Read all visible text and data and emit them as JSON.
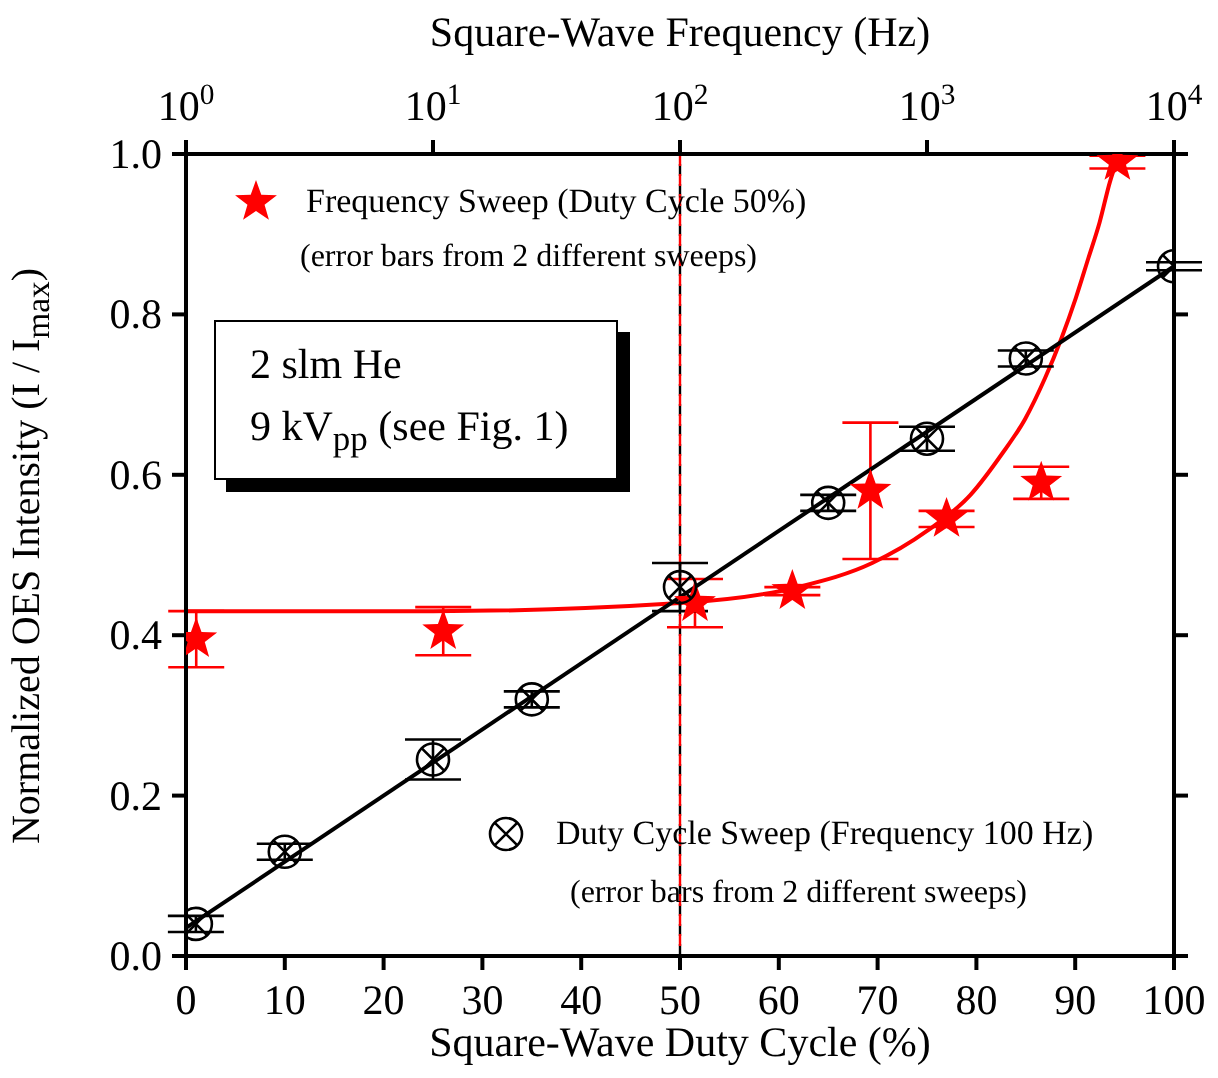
{
  "chart_data": {
    "type": "scatter",
    "xlabel": "Square-Wave Duty Cycle (%)",
    "x2label": "Square-Wave Frequency (Hz)",
    "ylabel": "Normalized OES Intensity (I / I$_{max}$)",
    "xlim": [
      0,
      100
    ],
    "xticks": [
      0,
      10,
      20,
      30,
      40,
      50,
      60,
      70,
      80,
      90,
      100
    ],
    "x2lim": [
      1,
      10000
    ],
    "x2ticks": [
      {
        "value": 1,
        "label": "10$^{0}$"
      },
      {
        "value": 10,
        "label": "10$^{1}$"
      },
      {
        "value": 100,
        "label": "10$^{2}$"
      },
      {
        "value": 1000,
        "label": "10$^{3}$"
      },
      {
        "value": 10000,
        "label": "10$^{4}$"
      }
    ],
    "log": "x2",
    "ylim": [
      0,
      1
    ],
    "yticks": [
      {
        "value": 0,
        "label": "0.0"
      },
      0.2,
      0.4,
      0.6,
      0.8,
      {
        "value": 1,
        "label": "1.0"
      }
    ],
    "legend": "top left",
    "series": [
      {
        "name": "Frequency Sweep (Duty Cycle 50%)",
        "axis": "x2",
        "marker": "star",
        "color": "#ff0000",
        "x": [
          1.1,
          11,
          115,
          285,
          590,
          1200,
          2900,
          5900
        ],
        "values": [
          0.395,
          0.405,
          0.44,
          0.455,
          0.58,
          0.545,
          0.59,
          0.99
        ],
        "errors": [
          0.035,
          0.03,
          0.03,
          0.005,
          0.085,
          0.01,
          0.02,
          0.008
        ]
      },
      {
        "type": "line",
        "axis": "x2",
        "color": "#ff0000",
        "x": [
          1,
          10,
          100,
          300,
          600,
          1000,
          1500,
          2000,
          2500,
          3000,
          3500,
          4000,
          4500,
          5000,
          5500,
          6000
        ],
        "values": [
          0.43,
          0.43,
          0.44,
          0.46,
          0.49,
          0.53,
          0.575,
          0.625,
          0.67,
          0.72,
          0.77,
          0.82,
          0.87,
          0.915,
          0.965,
          1.0
        ]
      },
      {
        "name": "Duty Cycle Sweep (Frequency 100 Hz)",
        "marker": "cross",
        "color": "#000000",
        "x": [
          1,
          10,
          25,
          35,
          50,
          65,
          75,
          85,
          100
        ],
        "values": [
          0.04,
          0.13,
          0.245,
          0.32,
          0.46,
          0.565,
          0.645,
          0.745,
          0.86
        ],
        "errors": [
          0.01,
          0.01,
          0.025,
          0.01,
          0.03,
          0.01,
          0.015,
          0.01,
          0.005
        ]
      },
      {
        "type": "line",
        "color": "#000000",
        "x": [
          0,
          100
        ],
        "values": [
          0.035,
          0.86
        ]
      }
    ],
    "ref_lines": [
      {
        "axis": "x",
        "value": 50,
        "color": "#000000",
        "line_style": "dashed"
      },
      {
        "axis": "x2",
        "value": 100,
        "color": "#ff0000",
        "line_style": "dashed"
      }
    ],
    "annotations": [
      "(error bars from 2 different sweeps)",
      "(error bars from 2 different sweeps)",
      "2 slm He",
      "9 kV$_{pp}$ (see Fig. 1)"
    ]
  }
}
